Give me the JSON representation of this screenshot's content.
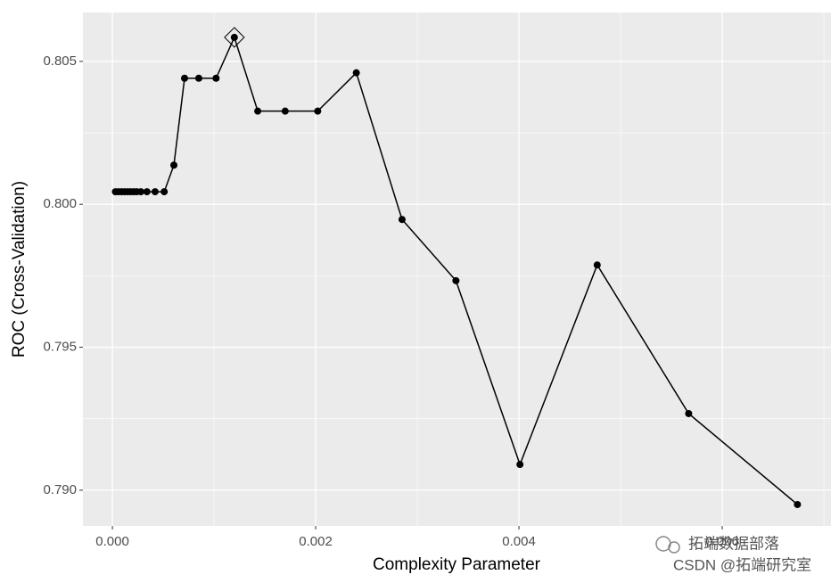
{
  "chart_data": {
    "type": "line",
    "x_label": "Complexity Parameter",
    "y_label": "ROC (Cross-Validation)",
    "x": [
      3e-05,
      6e-05,
      9e-05,
      0.00012,
      0.00015,
      0.00018,
      0.00021,
      0.00024,
      0.00028,
      0.00034,
      0.00042,
      0.00051,
      0.000605,
      0.00071,
      0.00085,
      0.00102,
      0.0012,
      0.00143,
      0.0017,
      0.00202,
      0.0024,
      0.00285,
      0.00338,
      0.00401,
      0.00477,
      0.00567,
      0.00674
    ],
    "values": [
      0.80044,
      0.80044,
      0.80044,
      0.80044,
      0.80044,
      0.80044,
      0.80044,
      0.80044,
      0.80044,
      0.80044,
      0.80044,
      0.80044,
      0.80137,
      0.80441,
      0.80441,
      0.80441,
      0.80584,
      0.80326,
      0.80326,
      0.80326,
      0.8046,
      0.79947,
      0.79733,
      0.7909,
      0.79788,
      0.79268,
      0.7895
    ],
    "color": "#000000",
    "xlim": [
      -0.00029,
      0.00707
    ],
    "ylim": [
      0.78875,
      0.80671
    ],
    "xticks": [
      {
        "value": 0,
        "label": "0.000"
      },
      {
        "value": 0.002,
        "label": "0.002"
      },
      {
        "value": 0.004,
        "label": "0.004"
      },
      {
        "value": 0.006,
        "label": "0.006"
      }
    ],
    "yticks": [
      {
        "value": 0.79,
        "label": "0.790"
      },
      {
        "value": 0.795,
        "label": "0.795"
      },
      {
        "value": 0.8,
        "label": "0.800"
      },
      {
        "value": 0.805,
        "label": "0.805"
      }
    ],
    "grid": true,
    "annotations": [
      "拓端数据部落",
      "CSDN @拓端研究室"
    ]
  }
}
